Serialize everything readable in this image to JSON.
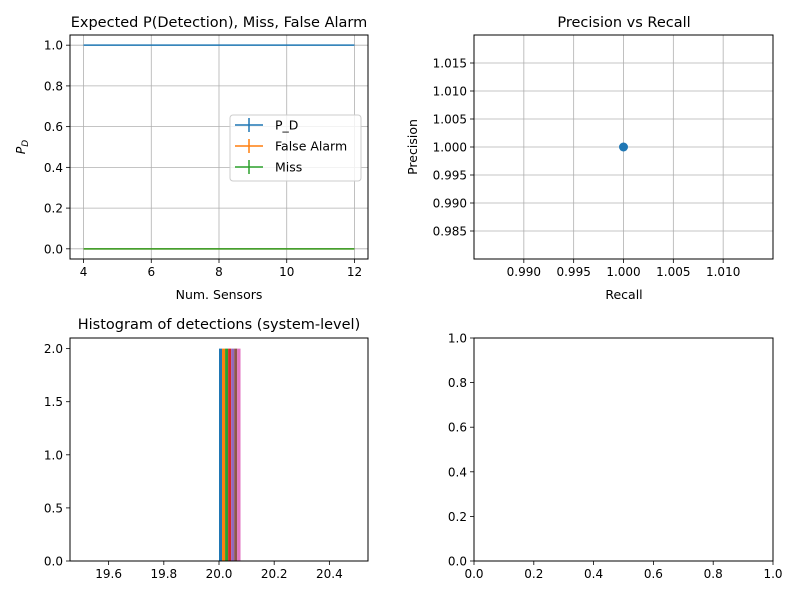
{
  "chart_data": [
    {
      "type": "line",
      "title": "Expected P(Detection), Miss, False Alarm",
      "xlabel": "Num. Sensors",
      "ylabel_main": "P",
      "ylabel_sub": "D",
      "xlim": [
        3.6,
        12.4
      ],
      "ylim": [
        -0.05,
        1.05
      ],
      "xticks": [
        4,
        6,
        8,
        10,
        12
      ],
      "xtick_labels": [
        "4",
        "6",
        "8",
        "10",
        "12"
      ],
      "yticks": [
        0.0,
        0.2,
        0.4,
        0.6,
        0.8,
        1.0
      ],
      "ytick_labels": [
        "0.0",
        "0.2",
        "0.4",
        "0.6",
        "0.8",
        "1.0"
      ],
      "grid": true,
      "legend_position": "center-right",
      "x": [
        4,
        12
      ],
      "series": [
        {
          "name": "P_D",
          "color": "#1f77b4",
          "values": [
            1.0,
            1.0
          ]
        },
        {
          "name": "False Alarm",
          "color": "#ff7f0e",
          "values": [
            0.0,
            0.0
          ]
        },
        {
          "name": "Miss",
          "color": "#2ca02c",
          "values": [
            0.0,
            0.0
          ]
        }
      ]
    },
    {
      "type": "scatter",
      "title": "Precision vs Recall",
      "xlabel": "Recall",
      "ylabel": "Precision",
      "xlim": [
        0.985,
        1.015
      ],
      "ylim": [
        0.98,
        1.02
      ],
      "xticks": [
        0.99,
        0.995,
        1.0,
        1.005,
        1.01
      ],
      "xtick_labels": [
        "0.990",
        "0.995",
        "1.000",
        "1.005",
        "1.010"
      ],
      "yticks": [
        0.985,
        0.99,
        0.995,
        1.0,
        1.005,
        1.01,
        1.015
      ],
      "ytick_labels": [
        "0.985",
        "0.990",
        "0.995",
        "1.000",
        "1.005",
        "1.010",
        "1.015"
      ],
      "grid": true,
      "points": [
        {
          "x": 1.0,
          "y": 1.0,
          "color": "#1f77b4"
        }
      ]
    },
    {
      "type": "bar",
      "title": "Histogram of detections (system-level)",
      "xlim": [
        19.46,
        20.54
      ],
      "ylim": [
        0,
        2.1
      ],
      "xticks": [
        19.6,
        19.8,
        20.0,
        20.2,
        20.4
      ],
      "xtick_labels": [
        "19.6",
        "19.8",
        "20.0",
        "20.2",
        "20.4"
      ],
      "yticks": [
        0.0,
        0.5,
        1.0,
        1.5,
        2.0
      ],
      "ytick_labels": [
        "0.0",
        "0.5",
        "1.0",
        "1.5",
        "2.0"
      ],
      "grid": false,
      "bars": [
        {
          "x0": 20.0,
          "x1": 20.011,
          "value": 2,
          "color": "#1f77b4"
        },
        {
          "x0": 20.011,
          "x1": 20.022,
          "value": 2,
          "color": "#ff7f0e"
        },
        {
          "x0": 20.022,
          "x1": 20.033,
          "value": 2,
          "color": "#2ca02c"
        },
        {
          "x0": 20.033,
          "x1": 20.044,
          "value": 2,
          "color": "#d62728"
        },
        {
          "x0": 20.044,
          "x1": 20.055,
          "value": 2,
          "color": "#9467bd"
        },
        {
          "x0": 20.055,
          "x1": 20.066,
          "value": 2,
          "color": "#8c564b"
        },
        {
          "x0": 20.066,
          "x1": 20.078,
          "value": 2,
          "color": "#e377c2"
        }
      ]
    },
    {
      "type": "line",
      "title": "",
      "xlim": [
        0,
        1
      ],
      "ylim": [
        0,
        1
      ],
      "xticks": [
        0.0,
        0.2,
        0.4,
        0.6,
        0.8,
        1.0
      ],
      "xtick_labels": [
        "0.0",
        "0.2",
        "0.4",
        "0.6",
        "0.8",
        "1.0"
      ],
      "yticks": [
        0.0,
        0.2,
        0.4,
        0.6,
        0.8,
        1.0
      ],
      "ytick_labels": [
        "0.0",
        "0.2",
        "0.4",
        "0.6",
        "0.8",
        "1.0"
      ],
      "grid": false,
      "series": []
    }
  ]
}
